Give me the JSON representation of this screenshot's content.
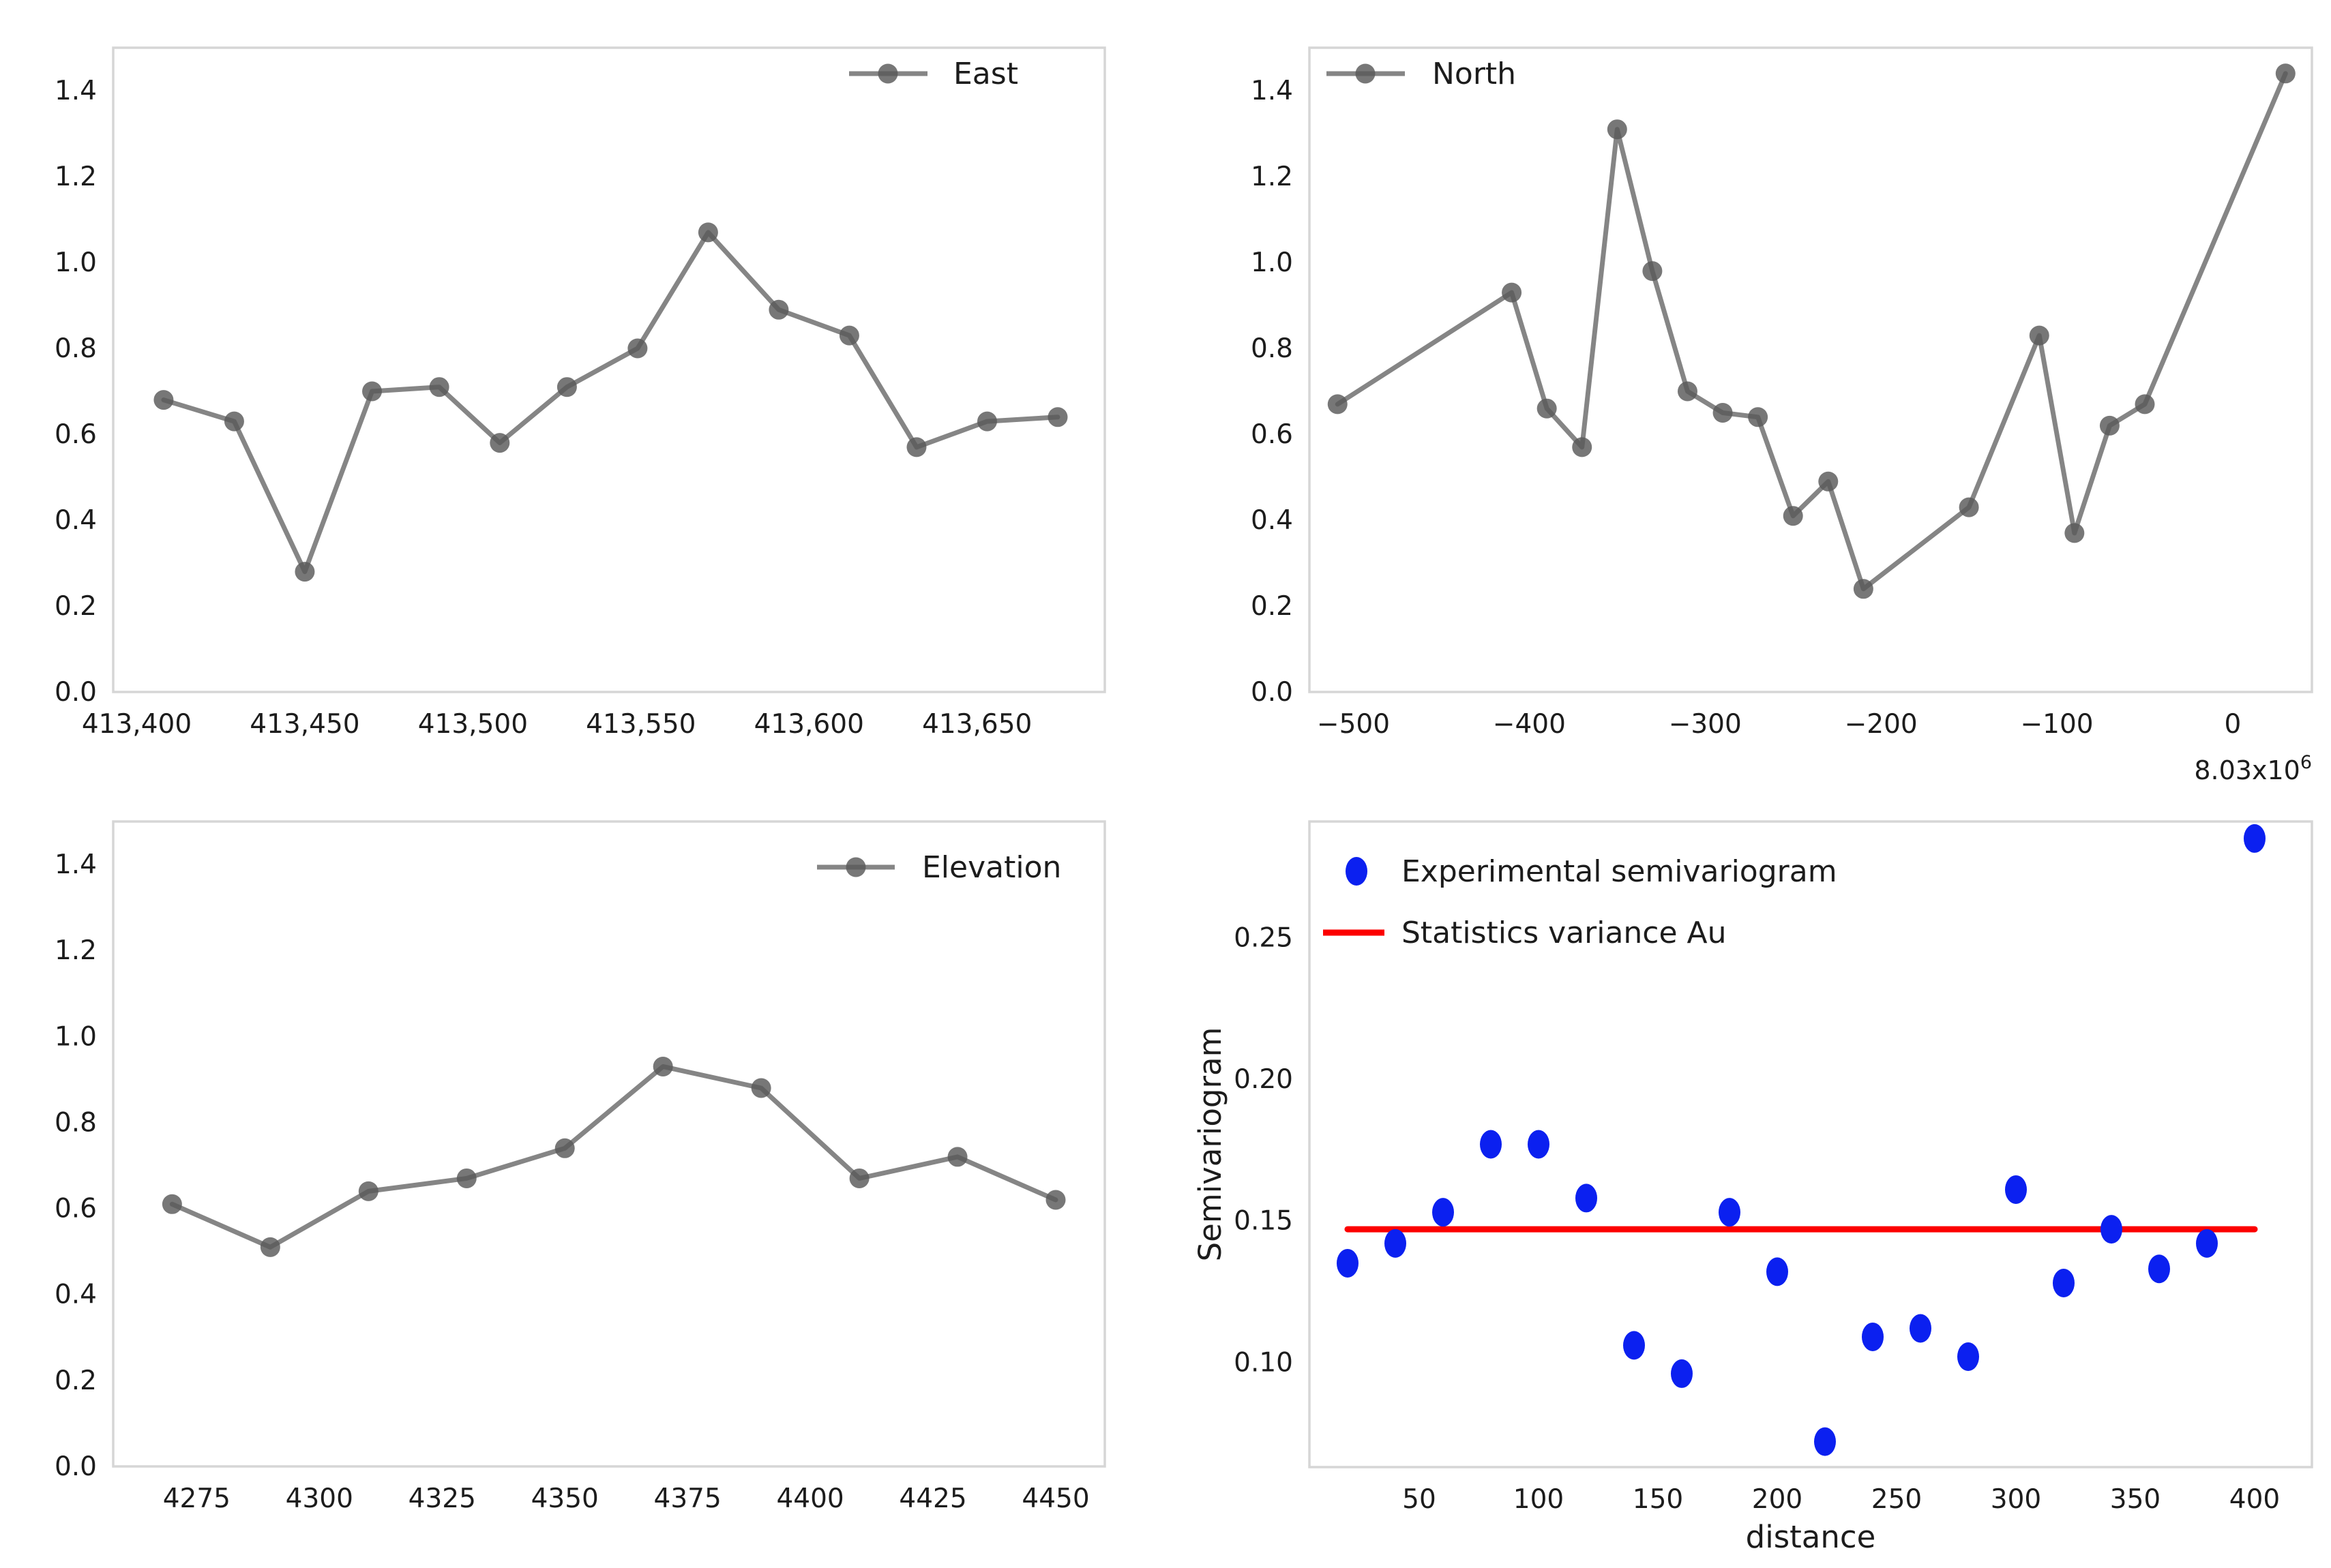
{
  "page": {
    "background": "#ffffff",
    "spine_color": "#d6d6d6",
    "text_color": "#1c1c1c"
  },
  "chart_data": [
    {
      "id": "east",
      "type": "line",
      "legend_label": "East",
      "legend_position": "inside-top-right",
      "line_color": "#858585",
      "marker_color": "#595959",
      "x": [
        413408,
        413429,
        413450,
        413470,
        413490,
        413508,
        413528,
        413549,
        413570,
        413591,
        413612,
        413632,
        413653,
        413674
      ],
      "y": [
        0.68,
        0.63,
        0.28,
        0.7,
        0.71,
        0.58,
        0.71,
        0.8,
        1.07,
        0.89,
        0.83,
        0.57,
        0.63,
        0.64
      ],
      "xlim": [
        413393,
        413688
      ],
      "ylim": [
        0,
        1.5
      ],
      "xticks": [
        413400,
        413450,
        413500,
        413550,
        413600,
        413650
      ],
      "xtick_labels": [
        "413,400",
        "413,450",
        "413,500",
        "413,550",
        "413,600",
        "413,650"
      ],
      "yticks": [
        0.0,
        0.2,
        0.4,
        0.6,
        0.8,
        1.0,
        1.2,
        1.4
      ],
      "ytick_labels": [
        "0.0",
        "0.2",
        "0.4",
        "0.6",
        "0.8",
        "1.0",
        "1.2",
        "1.4"
      ],
      "grid": false
    },
    {
      "id": "north",
      "type": "line",
      "legend_label": "North",
      "legend_position": "inside-top-left",
      "line_color": "#858585",
      "marker_color": "#595959",
      "x": [
        -509,
        -410,
        -390,
        -370,
        -350,
        -330,
        -310,
        -290,
        -270,
        -250,
        -230,
        -210,
        -150,
        -110,
        -90,
        -70,
        -50,
        30
      ],
      "y": [
        0.67,
        0.93,
        0.66,
        0.57,
        1.31,
        0.98,
        0.7,
        0.65,
        0.64,
        0.41,
        0.49,
        0.24,
        0.43,
        0.83,
        0.37,
        0.62,
        0.67,
        1.44
      ],
      "xlim": [
        -525,
        45
      ],
      "ylim": [
        0,
        1.5
      ],
      "xticks": [
        -500,
        -400,
        -300,
        -200,
        -100,
        0
      ],
      "xtick_labels": [
        "−500",
        "−400",
        "−300",
        "−200",
        "−100",
        "0"
      ],
      "yticks": [
        0.0,
        0.2,
        0.4,
        0.6,
        0.8,
        1.0,
        1.2,
        1.4
      ],
      "ytick_labels": [
        "0.0",
        "0.2",
        "0.4",
        "0.6",
        "0.8",
        "1.0",
        "1.2",
        "1.4"
      ],
      "axis_offset_label": {
        "base": "8.03x10",
        "exponent": "6"
      },
      "grid": false
    },
    {
      "id": "elevation",
      "type": "line",
      "legend_label": "Elevation",
      "legend_position": "inside-top-right",
      "line_color": "#858585",
      "marker_color": "#595959",
      "x": [
        4270,
        4290,
        4310,
        4330,
        4350,
        4370,
        4390,
        4410,
        4430,
        4450
      ],
      "y": [
        0.61,
        0.51,
        0.64,
        0.67,
        0.74,
        0.93,
        0.88,
        0.67,
        0.72,
        0.62
      ],
      "xlim": [
        4258,
        4460
      ],
      "ylim": [
        0,
        1.5
      ],
      "xticks": [
        4275,
        4300,
        4325,
        4350,
        4375,
        4400,
        4425,
        4450
      ],
      "xtick_labels": [
        "4275",
        "4300",
        "4325",
        "4350",
        "4375",
        "4400",
        "4425",
        "4450"
      ],
      "yticks": [
        0.0,
        0.2,
        0.4,
        0.6,
        0.8,
        1.0,
        1.2,
        1.4
      ],
      "ytick_labels": [
        "0.0",
        "0.2",
        "0.4",
        "0.6",
        "0.8",
        "1.0",
        "1.2",
        "1.4"
      ],
      "grid": false
    },
    {
      "id": "semivariogram",
      "type": "scatter",
      "xlabel": "distance",
      "ylabel": "Semivariogram",
      "point_color": "#0b20f0",
      "point_legend_label": "Experimental semivariogram",
      "variance_line": {
        "label": "Statistics variance Au",
        "value": 0.147,
        "x_start": 20,
        "x_end": 400,
        "color": "#fc0000"
      },
      "x": [
        20,
        40,
        60,
        80,
        100,
        120,
        140,
        160,
        180,
        200,
        220,
        240,
        260,
        280,
        300,
        320,
        340,
        360,
        380,
        400
      ],
      "y": [
        0.135,
        0.142,
        0.153,
        0.177,
        0.177,
        0.158,
        0.106,
        0.096,
        0.153,
        0.132,
        0.072,
        0.109,
        0.112,
        0.102,
        0.161,
        0.128,
        0.147,
        0.133,
        0.142,
        0.285
      ],
      "xlim": [
        4,
        424
      ],
      "ylim": [
        0.063,
        0.291
      ],
      "xticks": [
        50,
        100,
        150,
        200,
        250,
        300,
        350,
        400
      ],
      "xtick_labels": [
        "50",
        "100",
        "150",
        "200",
        "250",
        "300",
        "350",
        "400"
      ],
      "yticks": [
        0.1,
        0.15,
        0.2,
        0.25
      ],
      "ytick_labels": [
        "0.10",
        "0.15",
        "0.20",
        "0.25"
      ],
      "grid": false,
      "legend_position": "inside-top-left"
    }
  ]
}
